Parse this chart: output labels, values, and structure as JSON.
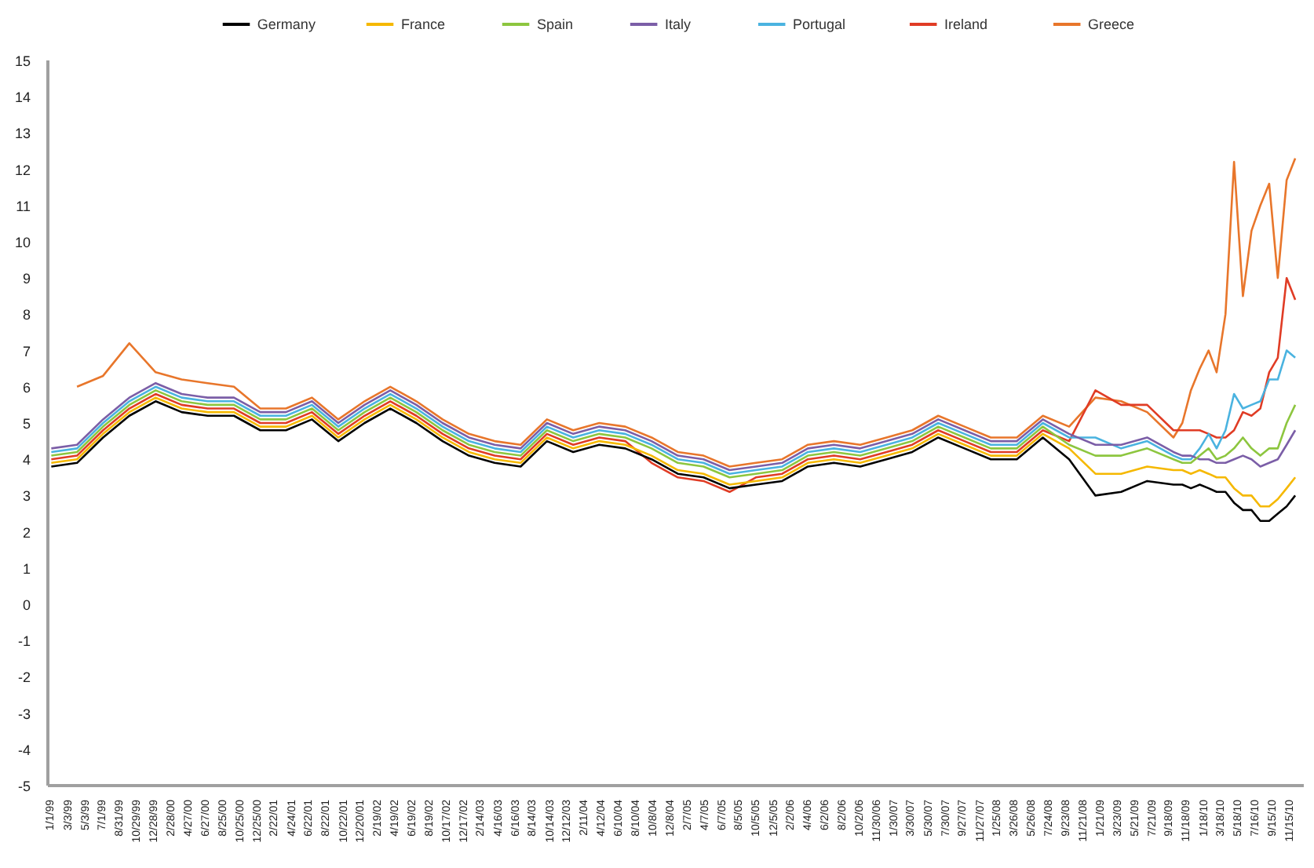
{
  "chart_data": {
    "type": "line",
    "legend": "top",
    "grid": false,
    "line_style": "solid",
    "marker": "none",
    "x": [
      "1999-01",
      "1999-04",
      "1999-07",
      "1999-10",
      "2000-01",
      "2000-04",
      "2000-07",
      "2000-10",
      "2001-01",
      "2001-04",
      "2001-07",
      "2001-10",
      "2002-01",
      "2002-04",
      "2002-07",
      "2002-10",
      "2003-01",
      "2003-04",
      "2003-07",
      "2003-10",
      "2004-01",
      "2004-04",
      "2004-07",
      "2004-10",
      "2005-01",
      "2005-04",
      "2005-07",
      "2005-10",
      "2006-01",
      "2006-04",
      "2006-07",
      "2006-10",
      "2007-01",
      "2007-04",
      "2007-07",
      "2007-10",
      "2008-01",
      "2008-04",
      "2008-07",
      "2008-10",
      "2009-01",
      "2009-04",
      "2009-07",
      "2009-10",
      "2009-11",
      "2009-12",
      "2010-01",
      "2010-02",
      "2010-03",
      "2010-04",
      "2010-05",
      "2010-06",
      "2010-07",
      "2010-08",
      "2010-09",
      "2010-10",
      "2010-11",
      "2010-12"
    ],
    "ylim": [
      -5,
      15
    ],
    "yticks": [
      -5,
      -4,
      -3,
      -2,
      -1,
      0,
      1,
      2,
      3,
      4,
      5,
      6,
      7,
      8,
      9,
      10,
      11,
      12,
      13,
      14,
      15
    ],
    "xlim": [
      "1998-12-20",
      "2010-12-31"
    ],
    "xticks": [
      {
        "value": "1999-01-01",
        "label": "1/1/99"
      },
      {
        "value": "1999-03-03",
        "label": "3/3/99"
      },
      {
        "value": "1999-05-03",
        "label": "5/3/99"
      },
      {
        "value": "1999-07-01",
        "label": "7/1/99"
      },
      {
        "value": "1999-08-31",
        "label": "8/31/99"
      },
      {
        "value": "1999-10-29",
        "label": "10/29/99"
      },
      {
        "value": "1999-12-28",
        "label": "12/28/99"
      },
      {
        "value": "2000-02-28",
        "label": "2/28/00"
      },
      {
        "value": "2000-04-27",
        "label": "4/27/00"
      },
      {
        "value": "2000-06-27",
        "label": "6/27/00"
      },
      {
        "value": "2000-08-25",
        "label": "8/25/00"
      },
      {
        "value": "2000-10-25",
        "label": "10/25/00"
      },
      {
        "value": "2000-12-25",
        "label": "12/25/00"
      },
      {
        "value": "2001-02-22",
        "label": "2/22/01"
      },
      {
        "value": "2001-04-24",
        "label": "4/24/01"
      },
      {
        "value": "2001-06-22",
        "label": "6/22/01"
      },
      {
        "value": "2001-08-22",
        "label": "8/22/01"
      },
      {
        "value": "2001-10-22",
        "label": "10/22/01"
      },
      {
        "value": "2001-12-20",
        "label": "12/20/01"
      },
      {
        "value": "2002-02-19",
        "label": "2/19/02"
      },
      {
        "value": "2002-04-19",
        "label": "4/19/02"
      },
      {
        "value": "2002-06-19",
        "label": "6/19/02"
      },
      {
        "value": "2002-08-19",
        "label": "8/19/02"
      },
      {
        "value": "2002-10-17",
        "label": "10/17/02"
      },
      {
        "value": "2002-12-17",
        "label": "12/17/02"
      },
      {
        "value": "2003-02-14",
        "label": "2/14/03"
      },
      {
        "value": "2003-04-16",
        "label": "4/16/03"
      },
      {
        "value": "2003-06-16",
        "label": "6/16/03"
      },
      {
        "value": "2003-08-14",
        "label": "8/14/03"
      },
      {
        "value": "2003-10-14",
        "label": "10/14/03"
      },
      {
        "value": "2003-12-12",
        "label": "12/12/03"
      },
      {
        "value": "2004-02-11",
        "label": "2/11/04"
      },
      {
        "value": "2004-04-12",
        "label": "4/12/04"
      },
      {
        "value": "2004-06-10",
        "label": "6/10/04"
      },
      {
        "value": "2004-08-10",
        "label": "8/10/04"
      },
      {
        "value": "2004-10-08",
        "label": "10/8/04"
      },
      {
        "value": "2004-12-08",
        "label": "12/8/04"
      },
      {
        "value": "2005-02-07",
        "label": "2/7/05"
      },
      {
        "value": "2005-04-07",
        "label": "4/7/05"
      },
      {
        "value": "2005-06-07",
        "label": "6/7/05"
      },
      {
        "value": "2005-08-05",
        "label": "8/5/05"
      },
      {
        "value": "2005-10-05",
        "label": "10/5/05"
      },
      {
        "value": "2005-12-05",
        "label": "12/5/05"
      },
      {
        "value": "2006-02-02",
        "label": "2/2/06"
      },
      {
        "value": "2006-04-04",
        "label": "4/4/06"
      },
      {
        "value": "2006-06-02",
        "label": "6/2/06"
      },
      {
        "value": "2006-08-02",
        "label": "8/2/06"
      },
      {
        "value": "2006-10-02",
        "label": "10/2/06"
      },
      {
        "value": "2006-11-30",
        "label": "11/30/06"
      },
      {
        "value": "2007-01-30",
        "label": "1/30/07"
      },
      {
        "value": "2007-03-30",
        "label": "3/30/07"
      },
      {
        "value": "2007-05-30",
        "label": "5/30/07"
      },
      {
        "value": "2007-07-30",
        "label": "7/30/07"
      },
      {
        "value": "2007-09-27",
        "label": "9/27/07"
      },
      {
        "value": "2007-11-27",
        "label": "11/27/07"
      },
      {
        "value": "2008-01-25",
        "label": "1/25/08"
      },
      {
        "value": "2008-03-26",
        "label": "3/26/08"
      },
      {
        "value": "2008-05-26",
        "label": "5/26/08"
      },
      {
        "value": "2008-07-24",
        "label": "7/24/08"
      },
      {
        "value": "2008-09-23",
        "label": "9/23/08"
      },
      {
        "value": "2008-11-21",
        "label": "11/21/08"
      },
      {
        "value": "2009-01-21",
        "label": "1/21/09"
      },
      {
        "value": "2009-03-23",
        "label": "3/23/09"
      },
      {
        "value": "2009-05-21",
        "label": "5/21/09"
      },
      {
        "value": "2009-07-21",
        "label": "7/21/09"
      },
      {
        "value": "2009-09-18",
        "label": "9/18/09"
      },
      {
        "value": "2009-11-18",
        "label": "11/18/09"
      },
      {
        "value": "2010-01-18",
        "label": "1/18/10"
      },
      {
        "value": "2010-03-18",
        "label": "3/18/10"
      },
      {
        "value": "2010-05-18",
        "label": "5/18/10"
      },
      {
        "value": "2010-07-16",
        "label": "7/16/10"
      },
      {
        "value": "2010-09-15",
        "label": "9/15/10"
      },
      {
        "value": "2010-11-15",
        "label": "11/15/10"
      }
    ],
    "series": [
      {
        "name": "Germany",
        "color": "#000000",
        "values": [
          3.8,
          3.9,
          4.6,
          5.2,
          5.6,
          5.3,
          5.2,
          5.2,
          4.8,
          4.8,
          5.1,
          4.5,
          5.0,
          5.4,
          5.0,
          4.5,
          4.1,
          3.9,
          3.8,
          4.5,
          4.2,
          4.4,
          4.3,
          4.0,
          3.6,
          3.5,
          3.2,
          3.3,
          3.4,
          3.8,
          3.9,
          3.8,
          4.0,
          4.2,
          4.6,
          4.3,
          4.0,
          4.0,
          4.6,
          4.0,
          3.0,
          3.1,
          3.4,
          3.3,
          3.3,
          3.2,
          3.3,
          3.2,
          3.1,
          3.1,
          2.8,
          2.6,
          2.6,
          2.3,
          2.3,
          2.5,
          2.7,
          3.0
        ]
      },
      {
        "name": "France",
        "color": "#f5b800",
        "values": [
          3.9,
          4.0,
          4.7,
          5.3,
          5.7,
          5.4,
          5.3,
          5.3,
          4.9,
          4.9,
          5.2,
          4.6,
          5.1,
          5.5,
          5.1,
          4.6,
          4.2,
          4.0,
          3.9,
          4.6,
          4.3,
          4.5,
          4.4,
          4.1,
          3.7,
          3.6,
          3.3,
          3.4,
          3.5,
          3.9,
          4.0,
          3.9,
          4.1,
          4.3,
          4.7,
          4.4,
          4.1,
          4.1,
          4.7,
          4.3,
          3.6,
          3.6,
          3.8,
          3.7,
          3.7,
          3.6,
          3.7,
          3.6,
          3.5,
          3.5,
          3.2,
          3.0,
          3.0,
          2.7,
          2.7,
          2.9,
          3.2,
          3.5
        ]
      },
      {
        "name": "Spain",
        "color": "#8dc63f",
        "values": [
          4.1,
          4.2,
          4.9,
          5.5,
          5.9,
          5.6,
          5.5,
          5.5,
          5.1,
          5.1,
          5.4,
          4.8,
          5.3,
          5.7,
          5.3,
          4.8,
          4.4,
          4.2,
          4.1,
          4.8,
          4.5,
          4.7,
          4.6,
          4.3,
          3.9,
          3.8,
          3.5,
          3.6,
          3.7,
          4.1,
          4.2,
          4.1,
          4.3,
          4.5,
          4.9,
          4.6,
          4.3,
          4.3,
          4.9,
          4.4,
          4.1,
          4.1,
          4.3,
          4.0,
          3.9,
          3.9,
          4.1,
          4.3,
          4.0,
          4.1,
          4.3,
          4.6,
          4.3,
          4.1,
          4.3,
          4.3,
          5.0,
          5.5
        ]
      },
      {
        "name": "Italy",
        "color": "#7b5ea7",
        "values": [
          4.3,
          4.4,
          5.1,
          5.7,
          6.1,
          5.8,
          5.7,
          5.7,
          5.3,
          5.3,
          5.6,
          5.0,
          5.5,
          5.9,
          5.5,
          5.0,
          4.6,
          4.4,
          4.3,
          5.0,
          4.7,
          4.9,
          4.8,
          4.5,
          4.1,
          4.0,
          3.7,
          3.8,
          3.9,
          4.3,
          4.4,
          4.3,
          4.5,
          4.7,
          5.1,
          4.8,
          4.5,
          4.5,
          5.1,
          4.7,
          4.4,
          4.4,
          4.6,
          4.2,
          4.1,
          4.1,
          4.0,
          4.0,
          3.9,
          3.9,
          4.0,
          4.1,
          4.0,
          3.8,
          3.9,
          4.0,
          4.4,
          4.8
        ]
      },
      {
        "name": "Portugal",
        "color": "#4ab3e0",
        "values": [
          4.2,
          4.3,
          5.0,
          5.6,
          6.0,
          5.7,
          5.6,
          5.6,
          5.2,
          5.2,
          5.5,
          4.9,
          5.4,
          5.8,
          5.4,
          4.9,
          4.5,
          4.3,
          4.2,
          4.9,
          4.6,
          4.8,
          4.7,
          4.4,
          4.0,
          3.9,
          3.6,
          3.7,
          3.8,
          4.2,
          4.3,
          4.2,
          4.4,
          4.6,
          5.0,
          4.7,
          4.4,
          4.4,
          5.0,
          4.6,
          4.6,
          4.3,
          4.5,
          4.1,
          4.0,
          4.0,
          4.3,
          4.7,
          4.3,
          4.8,
          5.8,
          5.4,
          5.5,
          5.6,
          6.2,
          6.2,
          7.0,
          6.8
        ]
      },
      {
        "name": "Ireland",
        "color": "#e03c25",
        "values": [
          4.0,
          4.1,
          4.8,
          5.4,
          5.8,
          5.5,
          5.4,
          5.4,
          5.0,
          5.0,
          5.3,
          4.7,
          5.2,
          5.6,
          5.2,
          4.7,
          4.3,
          4.1,
          4.0,
          4.7,
          4.4,
          4.6,
          4.5,
          3.9,
          3.5,
          3.4,
          3.1,
          3.5,
          3.6,
          4.0,
          4.1,
          4.0,
          4.2,
          4.4,
          4.8,
          4.5,
          4.2,
          4.2,
          4.8,
          4.5,
          5.9,
          5.5,
          5.5,
          4.8,
          4.8,
          4.8,
          4.8,
          4.7,
          4.6,
          4.6,
          4.8,
          5.3,
          5.2,
          5.4,
          6.4,
          6.8,
          9.0,
          8.4
        ]
      },
      {
        "name": "Greece",
        "color": "#e8762b",
        "values": [
          null,
          6.0,
          6.3,
          7.2,
          6.4,
          6.2,
          6.1,
          6.0,
          5.4,
          5.4,
          5.7,
          5.1,
          5.6,
          6.0,
          5.6,
          5.1,
          4.7,
          4.5,
          4.4,
          5.1,
          4.8,
          5.0,
          4.9,
          4.6,
          4.2,
          4.1,
          3.8,
          3.9,
          4.0,
          4.4,
          4.5,
          4.4,
          4.6,
          4.8,
          5.2,
          4.9,
          4.6,
          4.6,
          5.2,
          4.9,
          5.7,
          5.6,
          5.3,
          4.6,
          5.0,
          5.9,
          6.5,
          7.0,
          6.4,
          8.0,
          12.2,
          8.5,
          10.3,
          11.0,
          11.6,
          9.0,
          11.7,
          12.3
        ]
      }
    ]
  }
}
